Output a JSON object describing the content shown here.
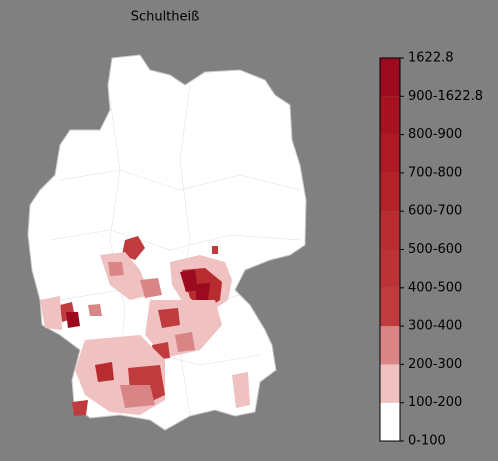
{
  "title": "Schultheiß",
  "legend": {
    "labels": [
      "1622.8",
      "900-1622.8",
      "800-900",
      "700-800",
      "600-700",
      "500-600",
      "400-500",
      "300-400",
      "200-300",
      "100-200",
      "0-100"
    ],
    "colors": [
      "#9b0a1f",
      "#a61220",
      "#ad1a24",
      "#b32328",
      "#b82b2f",
      "#bc3337",
      "#c03b3e",
      "#d98586",
      "#efc1c1",
      "#ffffff"
    ]
  }
}
